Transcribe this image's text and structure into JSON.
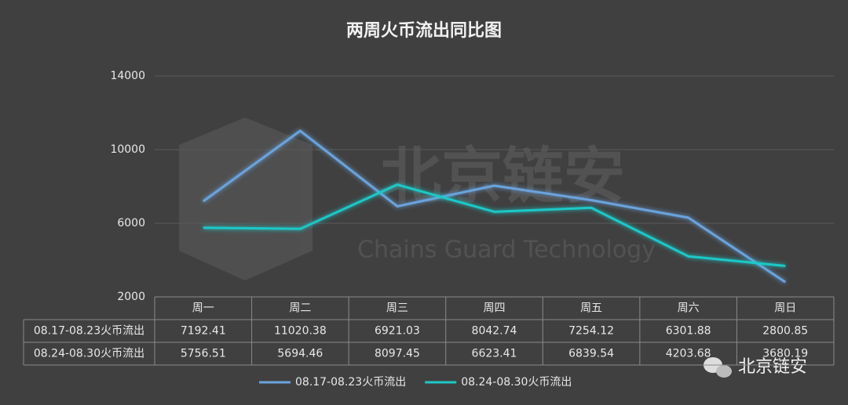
{
  "chart_data": {
    "type": "line",
    "title": "两周火币流出同比图",
    "categories": [
      "周一",
      "周二",
      "周三",
      "周四",
      "周五",
      "周六",
      "周日"
    ],
    "series": [
      {
        "name": "08.17-08.23火币流出",
        "color": "#6aa3dd",
        "values": [
          7192.41,
          11020.38,
          6921.03,
          8042.74,
          7254.12,
          6301.88,
          2800.85
        ]
      },
      {
        "name": "08.24-08.30火币流出",
        "color": "#1ec8c8",
        "values": [
          5756.51,
          5694.46,
          8097.45,
          6623.41,
          6839.54,
          4203.68,
          3680.19
        ]
      }
    ],
    "ylim": [
      2000,
      14000
    ],
    "yticks": [
      2000,
      6000,
      10000,
      14000
    ],
    "grid": true,
    "data_table": true,
    "annotations": {
      "watermark": "北京链安",
      "watermark_subtitle": "Chains Guard Technology",
      "logo": "北京链安"
    }
  }
}
